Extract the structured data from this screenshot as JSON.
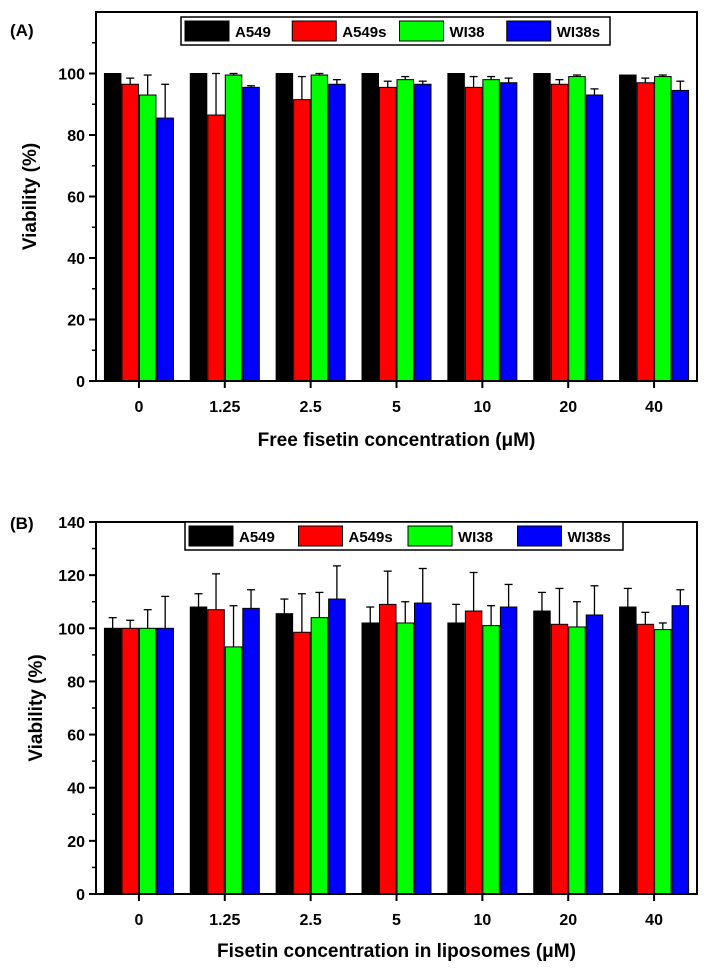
{
  "colors": {
    "A549": "#000000",
    "A549s": "#ff0000",
    "WI38": "#00ff00",
    "WI38s": "#0000ff"
  },
  "chart_data": [
    {
      "type": "bar",
      "panel_label": "(A)",
      "categories": [
        "0",
        "1.25",
        "2.5",
        "5",
        "10",
        "20",
        "40"
      ],
      "ylim": [
        0,
        120
      ],
      "yticks": [
        0,
        20,
        40,
        60,
        80,
        100
      ],
      "ylabel": "Viability (%)",
      "xlabel": "Free fisetin concentration (μM)",
      "legend_position": "top",
      "series": [
        {
          "name": "A549",
          "values": [
            100,
            100,
            100,
            100,
            100,
            100,
            99.5
          ],
          "errors": [
            0,
            0,
            0,
            0,
            0,
            0,
            0
          ]
        },
        {
          "name": "A549s",
          "values": [
            96.5,
            86.5,
            91.5,
            95.5,
            95.5,
            96.5,
            97
          ],
          "errors": [
            2,
            13.5,
            7.5,
            2,
            3.5,
            1.5,
            1.5
          ]
        },
        {
          "name": "WI38",
          "values": [
            93,
            99.5,
            99.5,
            98,
            98,
            99,
            99
          ],
          "errors": [
            6.5,
            0.5,
            0.5,
            1,
            1,
            0.5,
            0.5
          ]
        },
        {
          "name": "WI38s",
          "values": [
            85.5,
            95.5,
            96.5,
            96.5,
            97,
            93,
            94.5
          ],
          "errors": [
            11,
            0.5,
            1.5,
            1,
            1.5,
            2,
            3
          ]
        }
      ]
    },
    {
      "type": "bar",
      "panel_label": "(B)",
      "categories": [
        "0",
        "1.25",
        "2.5",
        "5",
        "10",
        "20",
        "40"
      ],
      "ylim": [
        0,
        140
      ],
      "yticks": [
        0,
        20,
        40,
        60,
        80,
        100,
        120,
        140
      ],
      "ylabel": "Viability (%)",
      "xlabel": "Fisetin concentration in liposomes (μM)",
      "legend_position": "top",
      "series": [
        {
          "name": "A549",
          "values": [
            100,
            108,
            105.5,
            102,
            102,
            106.5,
            108
          ],
          "errors": [
            4,
            5,
            5.5,
            6,
            7,
            7,
            7
          ]
        },
        {
          "name": "A549s",
          "values": [
            100,
            107,
            98.5,
            109,
            106.5,
            101.5,
            101.5
          ],
          "errors": [
            3,
            13.5,
            14.5,
            12.5,
            14.5,
            13.5,
            4.5
          ]
        },
        {
          "name": "WI38",
          "values": [
            100,
            93,
            104,
            102,
            101,
            100.5,
            99.5
          ],
          "errors": [
            7,
            15.5,
            9.5,
            8,
            7.5,
            9.5,
            2.5
          ]
        },
        {
          "name": "WI38s",
          "values": [
            100,
            107.5,
            111,
            109.5,
            108,
            105,
            108.5
          ],
          "errors": [
            12,
            7,
            12.5,
            13,
            8.5,
            11,
            6
          ]
        }
      ]
    }
  ]
}
